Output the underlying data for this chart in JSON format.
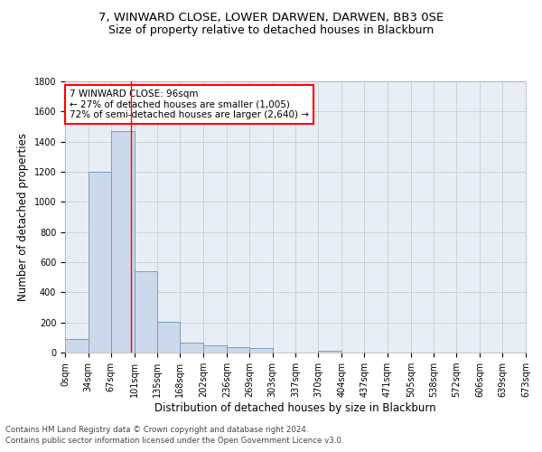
{
  "title": "7, WINWARD CLOSE, LOWER DARWEN, DARWEN, BB3 0SE",
  "subtitle": "Size of property relative to detached houses in Blackburn",
  "xlabel": "Distribution of detached houses by size in Blackburn",
  "ylabel": "Number of detached properties",
  "bin_edges": [
    0,
    34,
    67,
    101,
    135,
    168,
    202,
    236,
    269,
    303,
    337,
    370,
    404,
    437,
    471,
    505,
    538,
    572,
    606,
    639,
    673
  ],
  "bin_labels": [
    "0sqm",
    "34sqm",
    "67sqm",
    "101sqm",
    "135sqm",
    "168sqm",
    "202sqm",
    "236sqm",
    "269sqm",
    "303sqm",
    "337sqm",
    "370sqm",
    "404sqm",
    "437sqm",
    "471sqm",
    "505sqm",
    "538sqm",
    "572sqm",
    "606sqm",
    "639sqm",
    "673sqm"
  ],
  "bar_heights": [
    90,
    1200,
    1470,
    540,
    205,
    65,
    47,
    35,
    28,
    0,
    0,
    15,
    0,
    0,
    0,
    0,
    0,
    0,
    0,
    0
  ],
  "bar_color": "#ccd9ea",
  "bar_edgecolor": "#6699bb",
  "grid_color": "#cccccc",
  "background_color": "#e8eef5",
  "vline_x": 96,
  "vline_color": "red",
  "annotation_box_text": "7 WINWARD CLOSE: 96sqm\n← 27% of detached houses are smaller (1,005)\n72% of semi-detached houses are larger (2,640) →",
  "ylim": [
    0,
    1800
  ],
  "yticks": [
    0,
    200,
    400,
    600,
    800,
    1000,
    1200,
    1400,
    1600,
    1800
  ],
  "footer_line1": "Contains HM Land Registry data © Crown copyright and database right 2024.",
  "footer_line2": "Contains public sector information licensed under the Open Government Licence v3.0.",
  "title_fontsize": 9.5,
  "subtitle_fontsize": 9,
  "tick_fontsize": 7,
  "label_fontsize": 8.5,
  "annotation_fontsize": 7.5,
  "footer_fontsize": 6.2
}
